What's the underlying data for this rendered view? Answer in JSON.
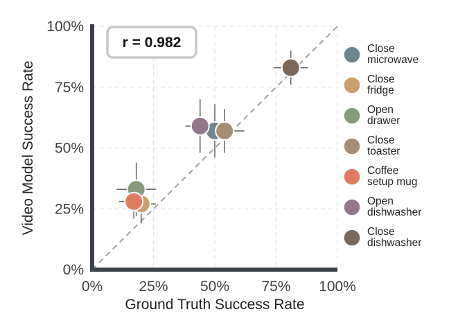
{
  "chart_data": {
    "type": "scatter",
    "title": "",
    "xlabel": "Ground Truth Success Rate",
    "ylabel": "Video Model Success Rate",
    "xlim": [
      0,
      100
    ],
    "ylim": [
      0,
      100
    ],
    "x_ticks": [
      "0%",
      "25%",
      "50%",
      "75%",
      "100%"
    ],
    "y_ticks": [
      "0%",
      "25%",
      "50%",
      "75%",
      "100%"
    ],
    "grid": true,
    "diagonal_reference_line": true,
    "legend_position": "right",
    "annotation": "r = 0.982",
    "series": [
      {
        "label_lines": [
          "Close",
          "microwave"
        ],
        "color": "#6f858d",
        "x": 50,
        "y": 57,
        "x_err": 6,
        "y_err": 11
      },
      {
        "label_lines": [
          "Close",
          "fridge"
        ],
        "color": "#c9a06d",
        "x": 20,
        "y": 27,
        "x_err": 6,
        "y_err": 8
      },
      {
        "label_lines": [
          "Open",
          "drawer"
        ],
        "color": "#879a7b",
        "x": 18,
        "y": 33,
        "x_err": 8,
        "y_err": 11
      },
      {
        "label_lines": [
          "Close",
          "toaster"
        ],
        "color": "#a58d76",
        "x": 54,
        "y": 57,
        "x_err": 8,
        "y_err": 9
      },
      {
        "label_lines": [
          "Coffee",
          "setup mug"
        ],
        "color": "#e07c62",
        "x": 17,
        "y": 28,
        "x_err": 6,
        "y_err": 7
      },
      {
        "label_lines": [
          "Open",
          "dishwasher"
        ],
        "color": "#94778d",
        "x": 44,
        "y": 59,
        "x_err": 6,
        "y_err": 11
      },
      {
        "label_lines": [
          "Close",
          "dishwasher"
        ],
        "color": "#7a685b",
        "x": 81,
        "y": 83,
        "x_err": 7,
        "y_err": 7
      }
    ]
  }
}
